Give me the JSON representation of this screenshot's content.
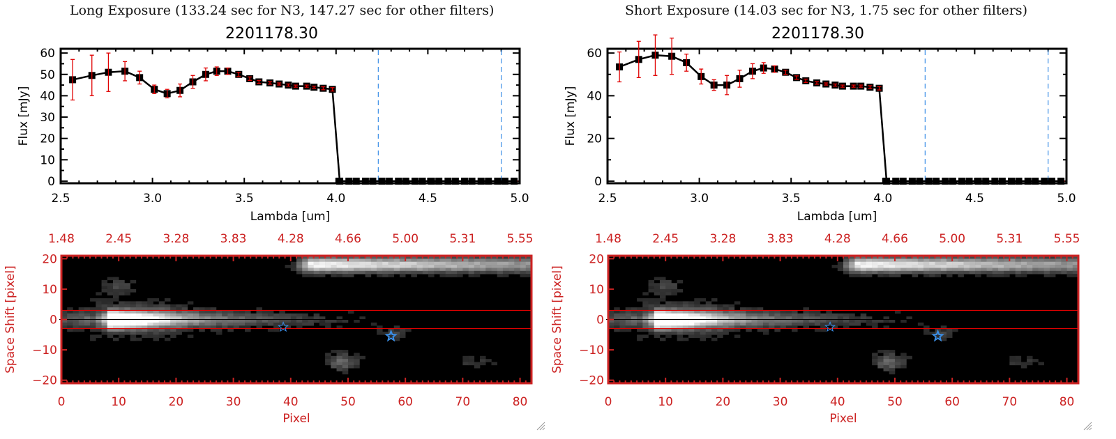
{
  "panels": [
    {
      "id": "long",
      "caption": "Long Exposure (133.24 sec for N3, 147.27 sec for other filters)",
      "object_id": "2201178.30"
    },
    {
      "id": "short",
      "caption": "Short Exposure (14.03 sec for N3, 1.75 sec for other filters)",
      "object_id": "2201178.30"
    }
  ],
  "colors": {
    "spectrum_line": "#000000",
    "error_bars": "#e00000",
    "marker": "#000000",
    "marker_inner": "#c00000",
    "band_lines": "#3a8ee6",
    "image_axes": "#cc2222",
    "zero_line": "#e00000",
    "star_marker": "#3a8ee6"
  },
  "chart_data": [
    {
      "type": "line",
      "panel": "long",
      "title": "2201178.30",
      "xlabel": "Lambda [um]",
      "ylabel": "Flux [mJy]",
      "xlim": [
        2.5,
        5.0
      ],
      "ylim": [
        -1,
        62
      ],
      "xticks": [
        "2.5",
        "3.0",
        "3.5",
        "4.0",
        "4.5",
        "5.0"
      ],
      "xtick_values": [
        2.5,
        3.0,
        3.5,
        4.0,
        4.5,
        5.0
      ],
      "yticks": [
        "0",
        "10",
        "20",
        "30",
        "40",
        "50",
        "60"
      ],
      "ytick_values": [
        0,
        10,
        20,
        30,
        40,
        50,
        60
      ],
      "vlines": [
        4.23,
        4.9
      ],
      "series": [
        {
          "name": "flux",
          "x": [
            2.565,
            2.67,
            2.76,
            2.85,
            2.93,
            3.01,
            3.08,
            3.15,
            3.22,
            3.29,
            3.35,
            3.41,
            3.47,
            3.53,
            3.58,
            3.64,
            3.69,
            3.74,
            3.78,
            3.84,
            3.88,
            3.93,
            3.98,
            4.02,
            4.07,
            4.11,
            4.16,
            4.2,
            4.25,
            4.29,
            4.34,
            4.38,
            4.43,
            4.47,
            4.52,
            4.56,
            4.61,
            4.65,
            4.7,
            4.74,
            4.79,
            4.83,
            4.88,
            4.92,
            4.97
          ],
          "y": [
            47.5,
            49.5,
            51,
            51.5,
            48.5,
            43,
            41,
            42.5,
            46.5,
            50,
            51.5,
            51.5,
            50,
            48,
            46.5,
            46,
            45.5,
            45,
            44.5,
            44.5,
            44,
            43.5,
            43,
            0,
            0,
            0,
            0,
            0,
            0,
            0,
            0,
            0,
            0,
            0,
            0,
            0,
            0,
            0,
            0,
            0,
            0,
            0,
            0,
            0,
            0
          ],
          "yerr": [
            9.5,
            9.5,
            9,
            4.5,
            3,
            2,
            2,
            3,
            3,
            3,
            2,
            1.5,
            1,
            0.8,
            0.7,
            0.6,
            0.5,
            0.5,
            0.5,
            0.5,
            0.5,
            0.7,
            0.8,
            0,
            0,
            0,
            0,
            0,
            0,
            0,
            0,
            0,
            0,
            0,
            0,
            0,
            0,
            0,
            0,
            0,
            0,
            0,
            0,
            0,
            0
          ]
        }
      ]
    },
    {
      "type": "line",
      "panel": "short",
      "title": "2201178.30",
      "xlabel": "Lambda [um]",
      "ylabel": "Flux [mJy]",
      "xlim": [
        2.5,
        5.0
      ],
      "ylim": [
        -1,
        62
      ],
      "xticks": [
        "2.5",
        "3.0",
        "3.5",
        "4.0",
        "4.5",
        "5.0"
      ],
      "xtick_values": [
        2.5,
        3.0,
        3.5,
        4.0,
        4.5,
        5.0
      ],
      "yticks": [
        "0",
        "20",
        "40",
        "60"
      ],
      "ytick_values": [
        0,
        20,
        40,
        60
      ],
      "vlines": [
        4.23,
        4.9
      ],
      "series": [
        {
          "name": "flux",
          "x": [
            2.565,
            2.67,
            2.76,
            2.85,
            2.93,
            3.01,
            3.08,
            3.15,
            3.22,
            3.29,
            3.35,
            3.41,
            3.47,
            3.53,
            3.58,
            3.64,
            3.69,
            3.74,
            3.78,
            3.84,
            3.88,
            3.93,
            3.98,
            4.02,
            4.07,
            4.11,
            4.16,
            4.2,
            4.25,
            4.29,
            4.34,
            4.38,
            4.43,
            4.47,
            4.52,
            4.56,
            4.61,
            4.65,
            4.7,
            4.74,
            4.79,
            4.83,
            4.88,
            4.92,
            4.97
          ],
          "y": [
            53.5,
            57,
            59,
            58.5,
            55.5,
            49,
            45,
            45,
            48,
            51.5,
            53,
            52.5,
            51,
            48.5,
            47,
            46,
            45.5,
            45,
            44.5,
            44.5,
            44.5,
            44,
            43.5,
            0,
            0,
            0,
            0,
            0,
            0,
            0,
            0,
            0,
            0,
            0,
            0,
            0,
            0,
            0,
            0,
            0,
            0,
            0,
            0,
            0,
            0
          ],
          "yerr": [
            7,
            8.5,
            9.5,
            8.5,
            4,
            3.5,
            2.5,
            4.5,
            4,
            3.5,
            2.5,
            1.5,
            1,
            0.8,
            0.8,
            0.6,
            0.5,
            0.5,
            0.5,
            0.5,
            0.5,
            0.7,
            0.8,
            0,
            0,
            0,
            0,
            0,
            0,
            0,
            0,
            0,
            0,
            0,
            0,
            0,
            0,
            0,
            0,
            0,
            0,
            0,
            0,
            0,
            0
          ]
        }
      ]
    },
    {
      "type": "heatmap",
      "panel": "long",
      "xlabel": "Pixel",
      "ylabel": "Space Shift [pixel]",
      "xlim": [
        0,
        82
      ],
      "ylim": [
        -21,
        21
      ],
      "xticks": [
        "0",
        "10",
        "20",
        "30",
        "40",
        "50",
        "60",
        "70",
        "80"
      ],
      "xtick_values": [
        0,
        10,
        20,
        30,
        40,
        50,
        60,
        70,
        80
      ],
      "yticks": [
        "-20",
        "-10",
        "0",
        "10",
        "20"
      ],
      "ytick_values": [
        -20,
        -10,
        0,
        10,
        20
      ],
      "top_axis_labels": [
        "1.48",
        "2.45",
        "3.28",
        "3.83",
        "4.28",
        "4.66",
        "5.00",
        "5.31",
        "5.55"
      ],
      "extraction_window": [
        -3,
        3
      ],
      "stars": [
        {
          "x": 38.7,
          "y": -2.5
        },
        {
          "x": 57.5,
          "y": -5.5
        }
      ]
    },
    {
      "type": "heatmap",
      "panel": "short",
      "xlabel": "Pixel",
      "ylabel": "Space Shift [pixel]",
      "xlim": [
        0,
        82
      ],
      "ylim": [
        -21,
        21
      ],
      "xticks": [
        "0",
        "10",
        "20",
        "30",
        "40",
        "50",
        "60",
        "70",
        "80"
      ],
      "xtick_values": [
        0,
        10,
        20,
        30,
        40,
        50,
        60,
        70,
        80
      ],
      "yticks": [
        "-20",
        "-10",
        "0",
        "10",
        "20"
      ],
      "ytick_values": [
        -20,
        -10,
        0,
        10,
        20
      ],
      "top_axis_labels": [
        "1.48",
        "2.45",
        "3.28",
        "3.83",
        "4.28",
        "4.66",
        "5.00",
        "5.31",
        "5.55"
      ],
      "extraction_window": [
        -3,
        3
      ],
      "stars": [
        {
          "x": 38.7,
          "y": -2.5
        },
        {
          "x": 57.5,
          "y": -5.5
        }
      ]
    }
  ]
}
